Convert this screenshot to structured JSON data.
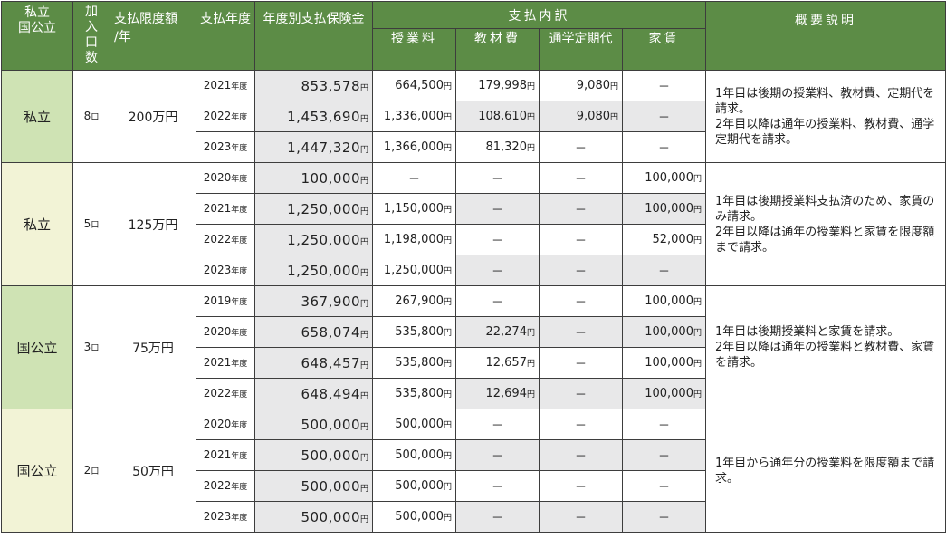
{
  "headers": {
    "type": "私立\n国公立",
    "units": "加\n入\n口\n数",
    "limit": "支払限度額\n/年",
    "year": "支払年度",
    "paid": "年度別支払保険金",
    "breakdown": "支払内訳",
    "tuition": "授業料",
    "materials": "教材費",
    "pass": "通学定期代",
    "rent": "家賃",
    "note": "概要説明"
  },
  "groups": [
    {
      "type": "私立",
      "units": "8",
      "limit": "200万円",
      "note": "1年目は後期の授業料、教材費、定期代を請求。\n2年目以降は通年の授業料、教材費、通学定期代を請求。",
      "rows": [
        {
          "year": "2021",
          "paid": "853,578",
          "tuition": "664,500",
          "materials": "179,998",
          "pass": "9,080",
          "rent": "－"
        },
        {
          "year": "2022",
          "paid": "1,453,690",
          "tuition": "1,336,000",
          "materials": "108,610",
          "pass": "9,080",
          "rent": "－"
        },
        {
          "year": "2023",
          "paid": "1,447,320",
          "tuition": "1,366,000",
          "materials": "81,320",
          "pass": "－",
          "rent": "－"
        }
      ]
    },
    {
      "type": "私立",
      "units": "5",
      "limit": "125万円",
      "note": "1年目は後期授業料支払済のため、家賃のみ請求。\n2年目以降は通年の授業料と家賃を限度額まで請求。",
      "rows": [
        {
          "year": "2020",
          "paid": "100,000",
          "tuition": "－",
          "materials": "－",
          "pass": "－",
          "rent": "100,000"
        },
        {
          "year": "2021",
          "paid": "1,250,000",
          "tuition": "1,150,000",
          "materials": "－",
          "pass": "－",
          "rent": "100,000"
        },
        {
          "year": "2022",
          "paid": "1,250,000",
          "tuition": "1,198,000",
          "materials": "－",
          "pass": "－",
          "rent": "52,000"
        },
        {
          "year": "2023",
          "paid": "1,250,000",
          "tuition": "1,250,000",
          "materials": "－",
          "pass": "－",
          "rent": "－"
        }
      ]
    },
    {
      "type": "国公立",
      "units": "3",
      "limit": "75万円",
      "note": "1年目は後期授業料と家賃を請求。\n2年目以降は通年の授業料と教材費、家賃を請求。",
      "rows": [
        {
          "year": "2019",
          "paid": "367,900",
          "tuition": "267,900",
          "materials": "－",
          "pass": "－",
          "rent": "100,000"
        },
        {
          "year": "2020",
          "paid": "658,074",
          "tuition": "535,800",
          "materials": "22,274",
          "pass": "－",
          "rent": "100,000"
        },
        {
          "year": "2021",
          "paid": "648,457",
          "tuition": "535,800",
          "materials": "12,657",
          "pass": "－",
          "rent": "100,000"
        },
        {
          "year": "2022",
          "paid": "648,494",
          "tuition": "535,800",
          "materials": "12,694",
          "pass": "－",
          "rent": "100,000"
        }
      ]
    },
    {
      "type": "国公立",
      "units": "2",
      "limit": "50万円",
      "note": "1年目から通年分の授業料を限度額まで請求。",
      "rows": [
        {
          "year": "2020",
          "paid": "500,000",
          "tuition": "500,000",
          "materials": "－",
          "pass": "－",
          "rent": "－"
        },
        {
          "year": "2021",
          "paid": "500,000",
          "tuition": "500,000",
          "materials": "－",
          "pass": "－",
          "rent": "－"
        },
        {
          "year": "2022",
          "paid": "500,000",
          "tuition": "500,000",
          "materials": "－",
          "pass": "－",
          "rent": "－"
        },
        {
          "year": "2023",
          "paid": "500,000",
          "tuition": "500,000",
          "materials": "－",
          "pass": "－",
          "rent": "－"
        }
      ]
    }
  ],
  "units": {
    "year": "年度",
    "yen": "円",
    "kuchi": "口"
  },
  "colors": {
    "header": "#5c8c46",
    "private_cell": "#cfe3b4",
    "public_cell": "#f2f3d6",
    "gray_cell": "#e8e8e9"
  }
}
